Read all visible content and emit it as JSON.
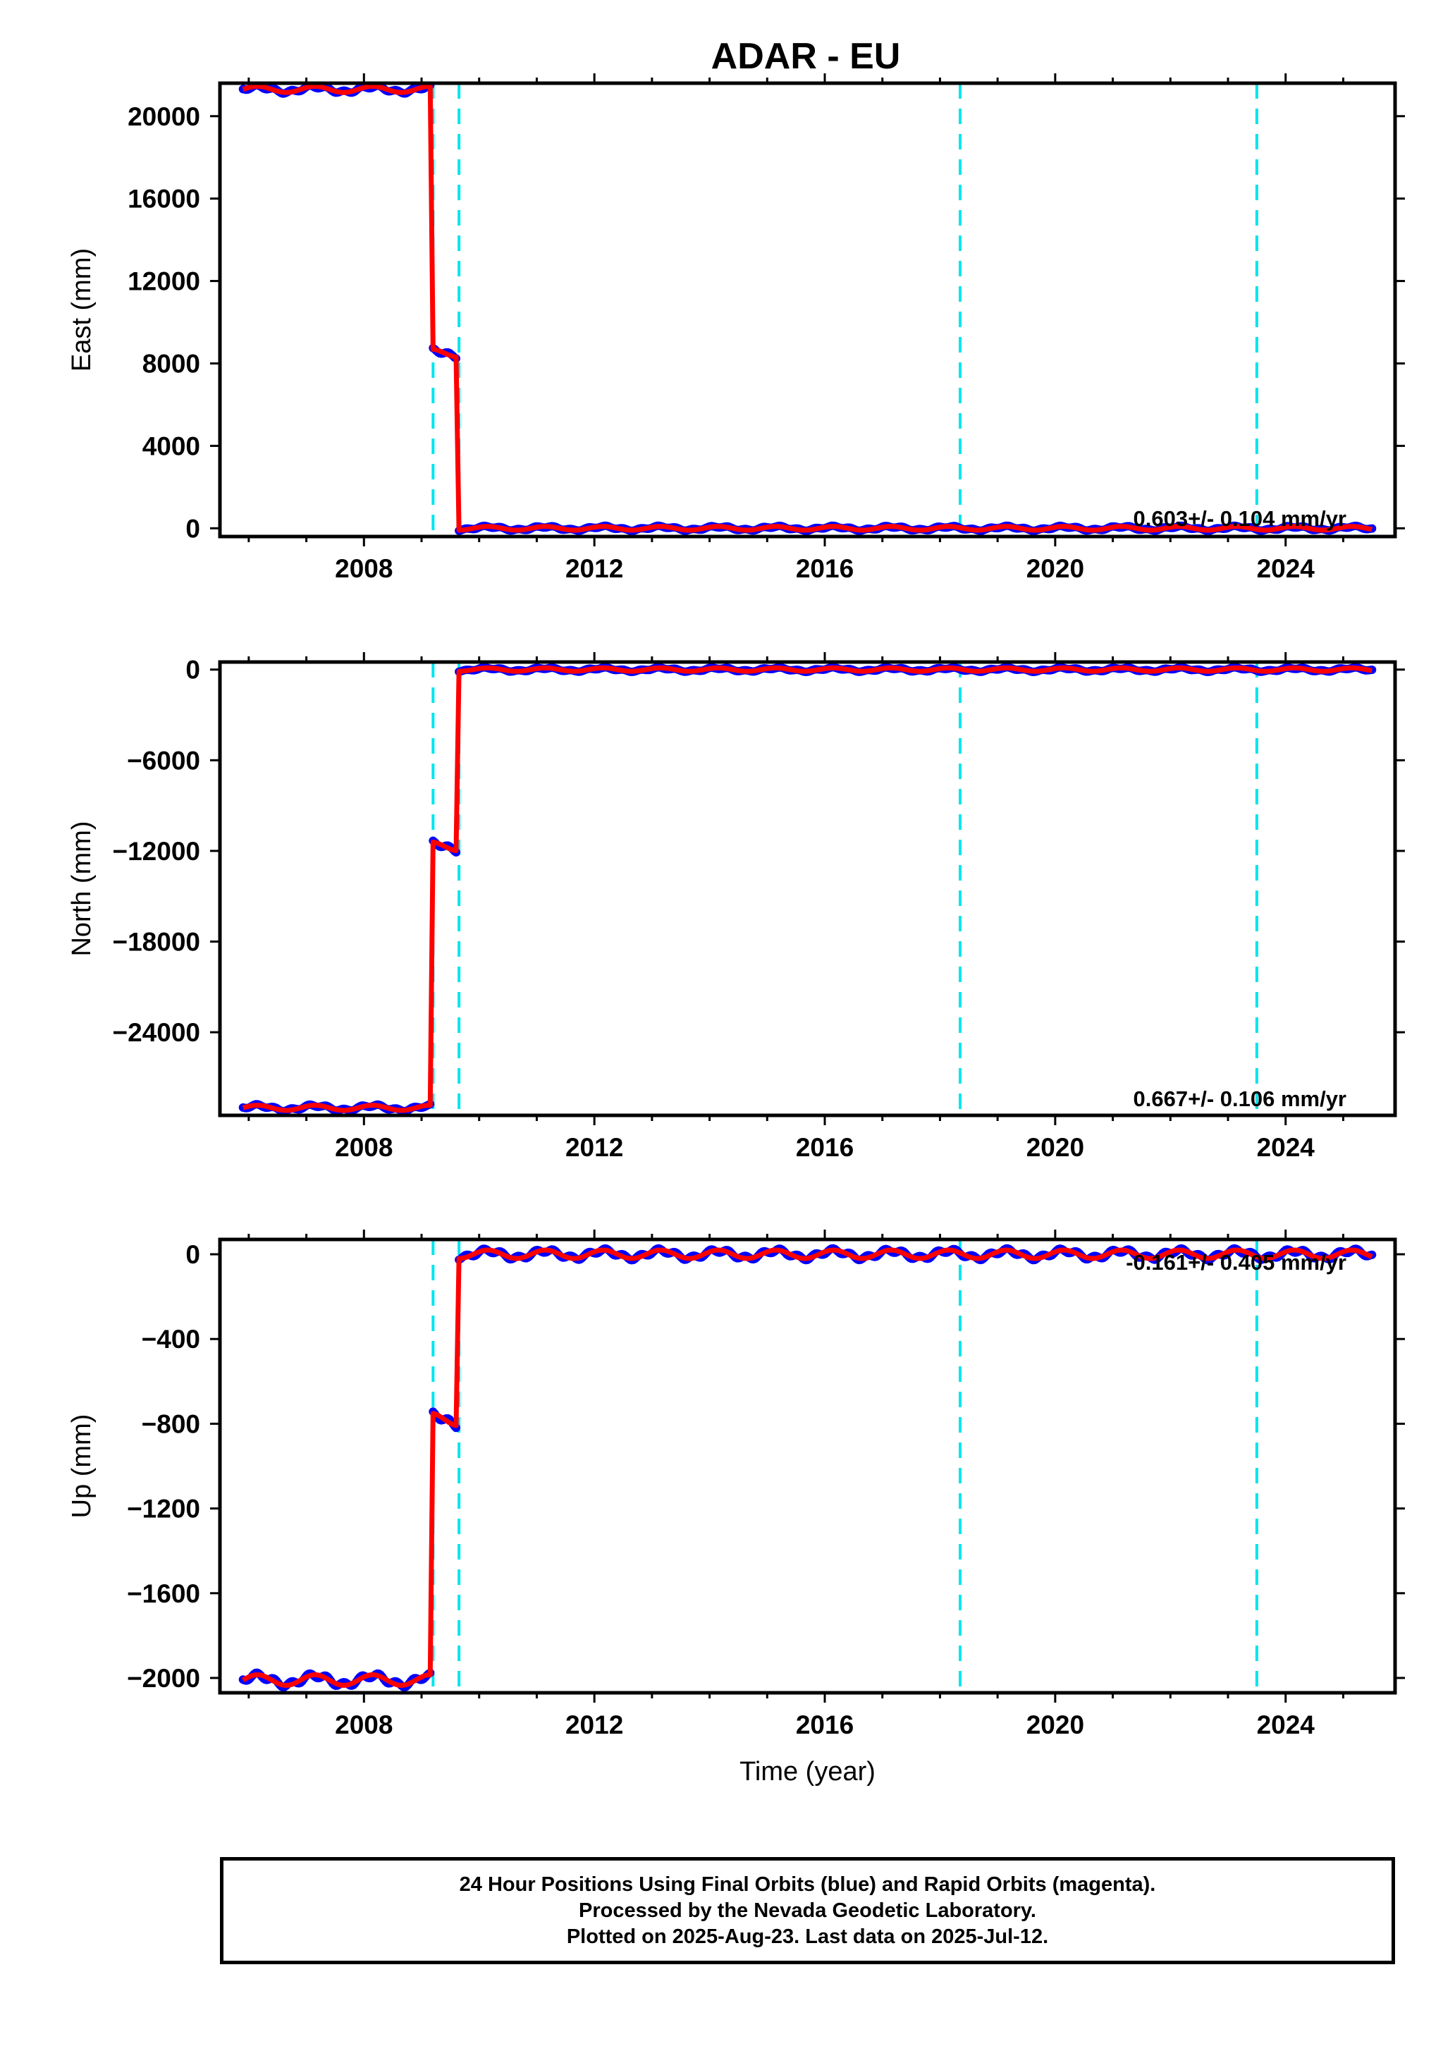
{
  "title": "ADAR - EU",
  "colors": {
    "final_orbit_points": "#0000ff",
    "model_curve": "#ff0000",
    "event_line": "#00e5ee",
    "axis": "#000000"
  },
  "chart_data": [
    {
      "type": "scatter",
      "panel": "east",
      "ylabel": "East (mm)",
      "xlabel": "",
      "xlim": [
        2005.5,
        2025.9
      ],
      "ylim": [
        -400,
        21600
      ],
      "yticks": [
        0,
        4000,
        8000,
        12000,
        16000,
        20000
      ],
      "xticks": [
        2008,
        2012,
        2016,
        2020,
        2024
      ],
      "event_lines": [
        2009.2,
        2009.65,
        2018.35,
        2023.5
      ],
      "rate_label": "0.603+/- 0.104 mm/yr",
      "segments": [
        {
          "x_start": 2005.9,
          "x_end": 2009.15,
          "y": 21300,
          "amplitude": 150
        },
        {
          "x_start": 2009.2,
          "x_end": 2009.6,
          "y": 8500,
          "amplitude": 200
        },
        {
          "x_start": 2009.65,
          "x_end": 2025.5,
          "y": 0,
          "amplitude": 90
        }
      ]
    },
    {
      "type": "scatter",
      "panel": "north",
      "ylabel": "North (mm)",
      "xlabel": "",
      "xlim": [
        2005.5,
        2025.9
      ],
      "ylim": [
        -29500,
        500
      ],
      "yticks": [
        -24000,
        -18000,
        -12000,
        -6000,
        0
      ],
      "xticks": [
        2008,
        2012,
        2016,
        2020,
        2024
      ],
      "event_lines": [
        2009.2,
        2009.65,
        2018.35,
        2023.5
      ],
      "rate_label": "0.667+/- 0.106 mm/yr",
      "segments": [
        {
          "x_start": 2005.9,
          "x_end": 2009.15,
          "y": -29000,
          "amplitude": 170
        },
        {
          "x_start": 2009.2,
          "x_end": 2009.6,
          "y": -11700,
          "amplitude": 300
        },
        {
          "x_start": 2009.65,
          "x_end": 2025.5,
          "y": 0,
          "amplitude": 110
        }
      ]
    },
    {
      "type": "scatter",
      "panel": "up",
      "ylabel": "Up (mm)",
      "xlabel": "Time (year)",
      "xlim": [
        2005.5,
        2025.9
      ],
      "ylim": [
        -2070,
        70
      ],
      "yticks": [
        -2000,
        -1600,
        -1200,
        -800,
        -400,
        0
      ],
      "xticks": [
        2008,
        2012,
        2016,
        2020,
        2024
      ],
      "event_lines": [
        2009.2,
        2009.65,
        2018.35,
        2023.5
      ],
      "rate_label": "-0.161+/- 0.405 mm/yr",
      "segments": [
        {
          "x_start": 2005.9,
          "x_end": 2009.15,
          "y": -2010,
          "amplitude": 25
        },
        {
          "x_start": 2009.2,
          "x_end": 2009.6,
          "y": -780,
          "amplitude": 30
        },
        {
          "x_start": 2009.65,
          "x_end": 2025.5,
          "y": 0,
          "amplitude": 20
        }
      ]
    }
  ],
  "footer": {
    "line1": "24 Hour Positions Using Final Orbits (blue) and Rapid Orbits (magenta).",
    "line2": "Processed by the Nevada Geodetic Laboratory.",
    "line3": "Plotted on 2025-Aug-23. Last data on 2025-Jul-12."
  }
}
